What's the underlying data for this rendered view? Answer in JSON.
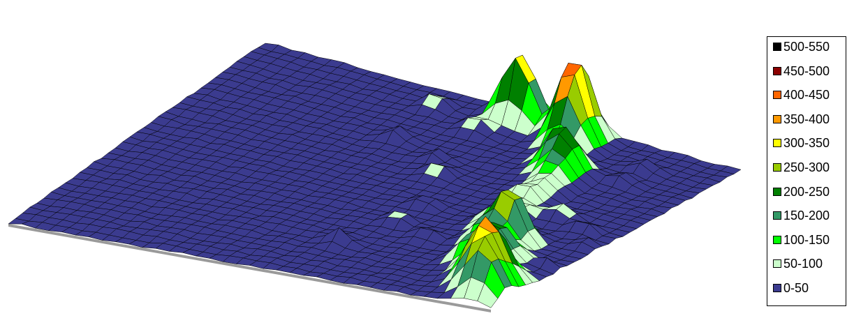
{
  "chart_data": {
    "type": "surface",
    "title": "",
    "xlabel": "",
    "ylabel": "",
    "zlabel": "",
    "grid_size": [
      36,
      36
    ],
    "z_range": [
      0,
      550
    ],
    "base_color": "#3b3b8f",
    "mesh_line_color": "#000000",
    "bands": [
      {
        "label": "500-550",
        "min": 500,
        "max": 550,
        "color": "#000000"
      },
      {
        "label": "450-500",
        "min": 450,
        "max": 500,
        "color": "#8b0000"
      },
      {
        "label": "400-450",
        "min": 400,
        "max": 450,
        "color": "#ff6600"
      },
      {
        "label": "350-400",
        "min": 350,
        "max": 400,
        "color": "#ff9900"
      },
      {
        "label": "300-350",
        "min": 300,
        "max": 350,
        "color": "#ffff00"
      },
      {
        "label": "250-300",
        "min": 250,
        "max": 300,
        "color": "#99cc00"
      },
      {
        "label": "200-250",
        "min": 200,
        "max": 250,
        "color": "#008000"
      },
      {
        "label": "150-200",
        "min": 150,
        "max": 200,
        "color": "#339966"
      },
      {
        "label": "100-150",
        "min": 100,
        "max": 150,
        "color": "#00ff00"
      },
      {
        "label": "50-100",
        "min": 50,
        "max": 100,
        "color": "#ccffcc"
      },
      {
        "label": "0-50",
        "min": 0,
        "max": 50,
        "color": "#3b3b8f"
      }
    ],
    "peaks": [
      {
        "gx": 1.5,
        "gy": 20,
        "z": 430,
        "spread": 1.1
      },
      {
        "gx": 1.2,
        "gy": 24.5,
        "z": 360,
        "spread": 1.0
      },
      {
        "gx": 2.8,
        "gy": 24.5,
        "z": 330,
        "spread": 1.0
      },
      {
        "gx": 4.3,
        "gy": 25.0,
        "z": 180,
        "spread": 1.0
      },
      {
        "gx": 7.0,
        "gy": 26.0,
        "z": 130,
        "spread": 0.9
      },
      {
        "gx": 8.5,
        "gy": 27.0,
        "z": 260,
        "spread": 1.2
      },
      {
        "gx": 11.0,
        "gy": 27.5,
        "z": 120,
        "spread": 1.0
      },
      {
        "gx": 13.0,
        "gy": 28.0,
        "z": 90,
        "spread": 0.8
      },
      {
        "gx": 15.0,
        "gy": 27.5,
        "z": 110,
        "spread": 0.9
      },
      {
        "gx": 17.5,
        "gy": 28.5,
        "z": 90,
        "spread": 0.8
      },
      {
        "gx": 21.0,
        "gy": 28.5,
        "z": 140,
        "spread": 1.1
      },
      {
        "gx": 22.5,
        "gy": 30.5,
        "z": 330,
        "spread": 1.0
      },
      {
        "gx": 24.5,
        "gy": 29.5,
        "z": 160,
        "spread": 1.0
      },
      {
        "gx": 26.5,
        "gy": 31.5,
        "z": 220,
        "spread": 1.2
      },
      {
        "gx": 28.5,
        "gy": 30.5,
        "z": 150,
        "spread": 1.0
      },
      {
        "gx": 30.5,
        "gy": 33.0,
        "z": 320,
        "spread": 1.3
      },
      {
        "gx": 32.5,
        "gy": 33.5,
        "z": 240,
        "spread": 1.2
      },
      {
        "gx": 34.0,
        "gy": 34.5,
        "z": 200,
        "spread": 1.0
      },
      {
        "gx": 3.0,
        "gy": 14.5,
        "z": 80,
        "spread": 0.8
      },
      {
        "gx": 5.0,
        "gy": 18.5,
        "z": 85,
        "spread": 0.8
      },
      {
        "gx": 9.5,
        "gy": 15.0,
        "z": 80,
        "spread": 0.7
      },
      {
        "gx": 11.5,
        "gy": 19.0,
        "z": 70,
        "spread": 0.7
      },
      {
        "gx": 14.0,
        "gy": 20.5,
        "z": 85,
        "spread": 0.8
      },
      {
        "gx": 18.0,
        "gy": 33.5,
        "z": 75,
        "spread": 0.7
      },
      {
        "gx": 19.5,
        "gy": 22.5,
        "z": 70,
        "spread": 0.7
      },
      {
        "gx": 23.5,
        "gy": 22.5,
        "z": 75,
        "spread": 0.7
      },
      {
        "gx": 25.0,
        "gy": 25.5,
        "z": 70,
        "spread": 0.7
      },
      {
        "gx": 29.0,
        "gy": 21.0,
        "z": 85,
        "spread": 0.7
      },
      {
        "gx": 4.5,
        "gy": 31.0,
        "z": 75,
        "spread": 0.7
      },
      {
        "gx": 7.5,
        "gy": 31.0,
        "z": 70,
        "spread": 0.7
      },
      {
        "gx": 16.5,
        "gy": 31.0,
        "z": 90,
        "spread": 0.8
      },
      {
        "gx": 20.5,
        "gy": 35.0,
        "z": 60,
        "spread": 0.6
      },
      {
        "gx": 26.0,
        "gy": 35.0,
        "z": 60,
        "spread": 0.6
      }
    ]
  }
}
